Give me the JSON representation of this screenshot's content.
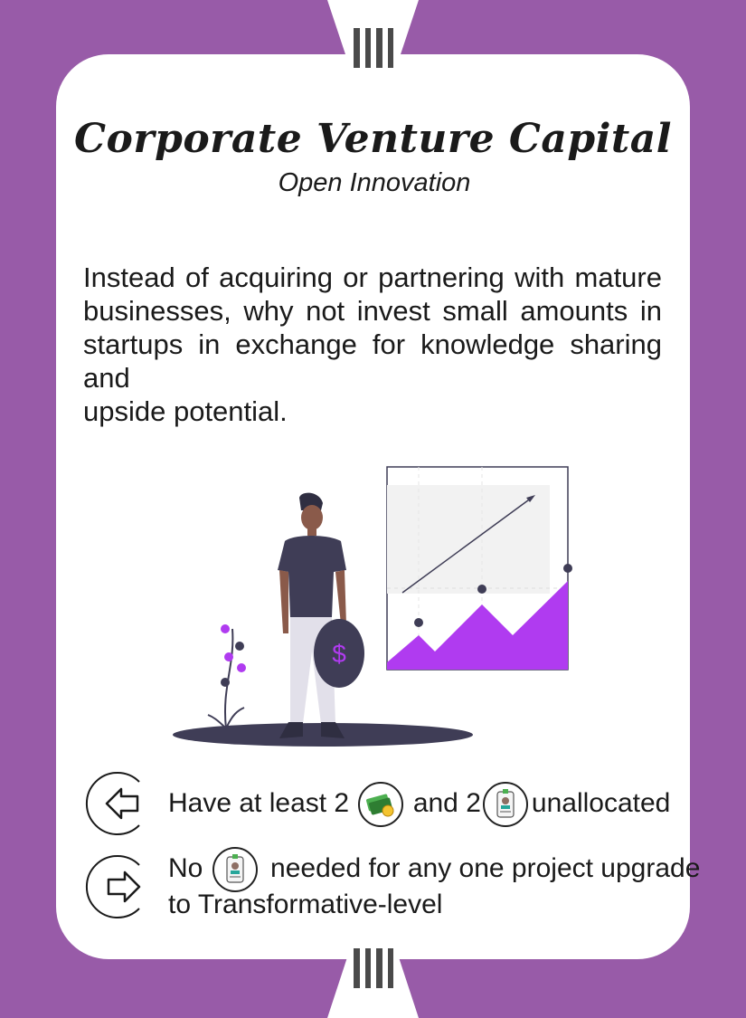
{
  "card": {
    "tier_numeral": "IIII",
    "title": "Corporate Venture Capital",
    "subtitle": "Open Innovation",
    "description_lines": [
      "Instead of acquiring or partnering with mature",
      "businesses, why not invest small amounts in",
      "startups in exchange for knowledge sharing and",
      "upside potential."
    ],
    "requirement": {
      "icon": "arrow-left-icon",
      "part1": "Have at least 2",
      "token1": "money-icon",
      "part2": "and 2",
      "token2": "employee-badge-icon",
      "part3": "unallocated"
    },
    "effect": {
      "icon": "arrow-right-icon",
      "part1": "No",
      "token": "employee-badge-icon",
      "part2": "needed for any one project upgrade",
      "line2": "to Transformative-level"
    },
    "colors": {
      "background": "#985ba8",
      "card": "#ffffff",
      "accent": "#b03bf0",
      "dark": "#3f3d56"
    }
  }
}
